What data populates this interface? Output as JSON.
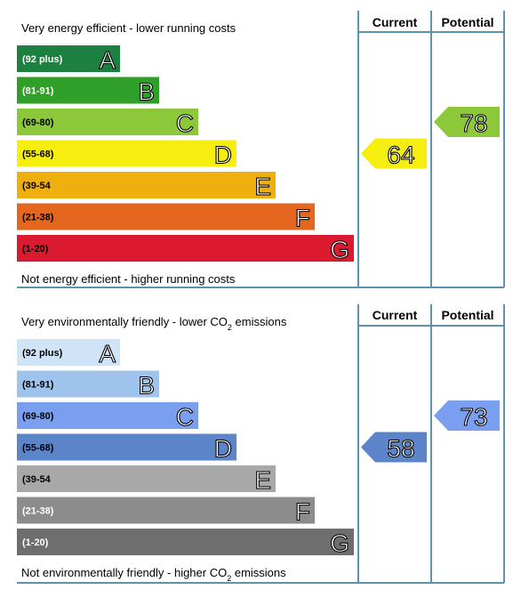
{
  "chart_data": [
    {
      "type": "bar",
      "header_current": "Current",
      "header_potential": "Potential",
      "top_caption": "Very energy efficient - lower running costs",
      "bottom_caption": "Not energy efficient - higher running costs",
      "bands": [
        {
          "range": "(92 plus)",
          "letter": "A",
          "color": "#1e8040",
          "range_color": "#ffffff"
        },
        {
          "range": "(81-91)",
          "letter": "B",
          "color": "#2f9f28",
          "range_color": "#ffffff"
        },
        {
          "range": "(69-80)",
          "letter": "C",
          "color": "#8cc83a",
          "range_color": "#000000"
        },
        {
          "range": "(55-68)",
          "letter": "D",
          "color": "#f5ee0f",
          "range_color": "#000000"
        },
        {
          "range": "(39-54",
          "letter": "E",
          "color": "#efb00f",
          "range_color": "#000000"
        },
        {
          "range": "(21-38)",
          "letter": "F",
          "color": "#e4661f",
          "range_color": "#000000"
        },
        {
          "range": "(1-20)",
          "letter": "G",
          "color": "#d91a2f",
          "range_color": "#000000"
        }
      ],
      "current": {
        "value": 64,
        "band": "D",
        "color": "#f5ee0f"
      },
      "potential": {
        "value": 78,
        "band": "C",
        "color": "#8cc83a"
      }
    },
    {
      "type": "bar",
      "header_current": "Current",
      "header_potential": "Potential",
      "top_caption": "Very environmentally friendly - lower CO2 emissions",
      "bottom_caption": "Not environmentally friendly - higher CO2 emissions",
      "bands": [
        {
          "range": "(92 plus)",
          "letter": "A",
          "color": "#cfe4f7",
          "range_color": "#000000"
        },
        {
          "range": "(81-91)",
          "letter": "B",
          "color": "#9ec4ee",
          "range_color": "#000000"
        },
        {
          "range": "(69-80)",
          "letter": "C",
          "color": "#7b9ff0",
          "range_color": "#000000"
        },
        {
          "range": "(55-68)",
          "letter": "D",
          "color": "#5c84c9",
          "range_color": "#000000"
        },
        {
          "range": "(39-54",
          "letter": "E",
          "color": "#a8a8a8",
          "range_color": "#000000"
        },
        {
          "range": "(21-38)",
          "letter": "F",
          "color": "#8c8c8c",
          "range_color": "#ffffff"
        },
        {
          "range": "(1-20)",
          "letter": "G",
          "color": "#6e6e6e",
          "range_color": "#ffffff"
        }
      ],
      "current": {
        "value": 58,
        "band": "D",
        "color": "#5c84c9"
      },
      "potential": {
        "value": 73,
        "band": "C",
        "color": "#7b9ff0"
      }
    }
  ]
}
